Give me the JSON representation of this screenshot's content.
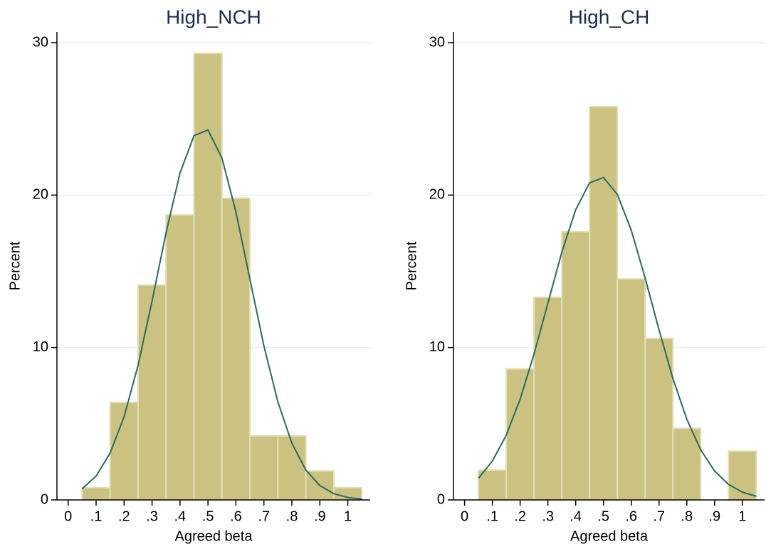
{
  "chart_data": [
    {
      "type": "histogram",
      "title": "High_NCH",
      "xlabel": "Agreed beta",
      "ylabel": "Percent",
      "bins": [
        0.05,
        0.15,
        0.25,
        0.35,
        0.45,
        0.55,
        0.65,
        0.75,
        0.85,
        0.95,
        1.05
      ],
      "values": [
        0.8,
        6.4,
        14.1,
        18.7,
        29.3,
        19.8,
        4.2,
        4.2,
        1.9,
        0.8
      ],
      "color": "#cbc282",
      "curve": {
        "x": [
          0.05,
          0.1,
          0.15,
          0.2,
          0.25,
          0.3,
          0.35,
          0.4,
          0.45,
          0.5,
          0.55,
          0.6,
          0.65,
          0.7,
          0.75,
          0.8,
          0.85,
          0.9,
          0.95,
          1.0,
          1.05
        ],
        "values": [
          0.73,
          1.57,
          3.07,
          5.46,
          8.83,
          13.05,
          17.52,
          21.45,
          23.9,
          24.27,
          22.43,
          18.89,
          14.48,
          10.11,
          6.43,
          3.72,
          1.96,
          0.94,
          0.41,
          0.16,
          0.06
        ],
        "color": "#2a6a5f"
      },
      "xlim": [
        -0.04,
        1.08
      ],
      "xticks": [
        0,
        {
          "value": 0.1,
          "label": ".1"
        },
        {
          "value": 0.2,
          "label": ".2"
        },
        {
          "value": 0.3,
          "label": ".3"
        },
        {
          "value": 0.4,
          "label": ".4"
        },
        {
          "value": 0.5,
          "label": ".5"
        },
        {
          "value": 0.6,
          "label": ".6"
        },
        {
          "value": 0.7,
          "label": ".7"
        },
        {
          "value": 0.8,
          "label": ".8"
        },
        {
          "value": 0.9,
          "label": ".9"
        },
        1
      ],
      "ylim": [
        0,
        30.7
      ],
      "yticks": [
        0,
        10,
        20,
        30
      ],
      "grid": true
    },
    {
      "type": "histogram",
      "title": "High_CH",
      "xlabel": "Agreed beta",
      "ylabel": "Percent",
      "bins": [
        0.05,
        0.15,
        0.25,
        0.35,
        0.45,
        0.55,
        0.65,
        0.75,
        0.85,
        0.95,
        1.05
      ],
      "values": [
        1.96,
        8.6,
        13.3,
        17.6,
        25.8,
        14.5,
        10.6,
        4.7,
        0,
        3.2
      ],
      "color": "#cbc282",
      "curve": {
        "x": [
          0.05,
          0.1,
          0.15,
          0.2,
          0.25,
          0.3,
          0.35,
          0.4,
          0.45,
          0.5,
          0.55,
          0.6,
          0.65,
          0.7,
          0.75,
          0.8,
          0.85,
          0.9,
          0.95,
          1.0,
          1.05
        ],
        "values": [
          1.42,
          2.55,
          4.25,
          6.61,
          9.57,
          12.92,
          16.25,
          19.04,
          20.8,
          21.15,
          20.04,
          17.7,
          14.56,
          11.16,
          7.96,
          5.3,
          3.29,
          1.9,
          1.02,
          0.51,
          0.24
        ],
        "color": "#2a6a5f"
      },
      "xlim": [
        -0.04,
        1.08
      ],
      "xticks": [
        0,
        {
          "value": 0.1,
          "label": ".1"
        },
        {
          "value": 0.2,
          "label": ".2"
        },
        {
          "value": 0.3,
          "label": ".3"
        },
        {
          "value": 0.4,
          "label": ".4"
        },
        {
          "value": 0.5,
          "label": ".5"
        },
        {
          "value": 0.6,
          "label": ".6"
        },
        {
          "value": 0.7,
          "label": ".7"
        },
        {
          "value": 0.8,
          "label": ".8"
        },
        {
          "value": 0.9,
          "label": ".9"
        },
        1
      ],
      "ylim": [
        0,
        30.7
      ],
      "yticks": [
        0,
        10,
        20,
        30
      ],
      "grid": true
    }
  ]
}
